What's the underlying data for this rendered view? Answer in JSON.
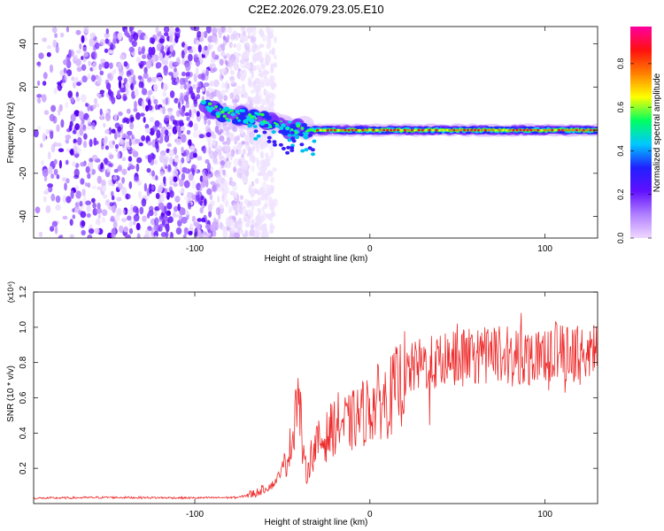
{
  "title": "C2E2.2026.079.23.05.E10",
  "chart_data": [
    {
      "type": "heatmap",
      "name": "spectrogram",
      "xlabel": "Height of straight line (km)",
      "ylabel": "Frequency (Hz)",
      "xlim": [
        -192,
        130
      ],
      "ylim": [
        -50,
        48
      ],
      "xticks": [
        -100,
        0,
        100
      ],
      "xtick_labels": [
        "-100",
        "0",
        "100"
      ],
      "yticks": [
        -40,
        -20,
        0,
        20,
        40
      ],
      "ytick_labels": [
        "-40",
        "-20",
        "0",
        "20",
        "40"
      ],
      "colorbar": {
        "label": "Normalized spectral amplitude",
        "range": [
          0,
          0.97
        ],
        "ticks": [
          0.0,
          0.2,
          0.4,
          0.6,
          0.8
        ],
        "tick_labels": [
          "0.0",
          "0.2",
          "0.4",
          "0.6",
          "0.8"
        ],
        "colors": [
          "#f0d8ff",
          "#b080ff",
          "#6010ff",
          "#2020ff",
          "#00c8ff",
          "#00ff60",
          "#ffff00",
          "#ff8000",
          "#ff1010",
          "#ff00a0"
        ]
      },
      "noise_region_x": [
        -192,
        -62
      ],
      "signal_trace": [
        {
          "x": -95,
          "f": 11
        },
        {
          "x": -85,
          "f": 8
        },
        {
          "x": -70,
          "f": 6
        },
        {
          "x": -60,
          "f": 5
        },
        {
          "x": -52,
          "f": 2
        },
        {
          "x": -45,
          "f": 1
        },
        {
          "x": -35,
          "f": 0
        },
        {
          "x": 0,
          "f": 0
        },
        {
          "x": 130,
          "f": 0
        }
      ]
    },
    {
      "type": "line",
      "name": "snr",
      "xlabel": "Height of straight line (km)",
      "ylabel": "SNR (10 * v/v)",
      "multiplier": "(x10⁴)",
      "xlim": [
        -192,
        130
      ],
      "ylim": [
        0,
        12000
      ],
      "xticks": [
        -100,
        0,
        100
      ],
      "xtick_labels": [
        "-100",
        "0",
        "100"
      ],
      "yticks": [
        2000,
        4000,
        6000,
        8000,
        10000,
        12000
      ],
      "ytick_labels": [
        "0.2",
        "0.4",
        "0.6",
        "0.8",
        "1.0",
        "1.2"
      ],
      "color": "#ee2a2a",
      "series": [
        {
          "name": "SNR",
          "x": [
            -192,
            -150,
            -100,
            -75,
            -65,
            -55,
            -48,
            -44,
            -42,
            -40,
            -38,
            -36,
            -34,
            -30,
            -26,
            -22,
            -18,
            -12,
            -6,
            0,
            5,
            10,
            15,
            20,
            25,
            30,
            40,
            50,
            60,
            70,
            80,
            90,
            100,
            110,
            120,
            130
          ],
          "y": [
            300,
            350,
            320,
            350,
            600,
            1100,
            2300,
            3800,
            6400,
            5500,
            2500,
            1700,
            2600,
            3400,
            3600,
            4200,
            4600,
            4500,
            5000,
            5400,
            5800,
            5900,
            6500,
            7200,
            7700,
            7900,
            8000,
            8200,
            8400,
            8500,
            8500,
            8300,
            8700,
            8600,
            8400,
            8600
          ]
        }
      ]
    }
  ]
}
